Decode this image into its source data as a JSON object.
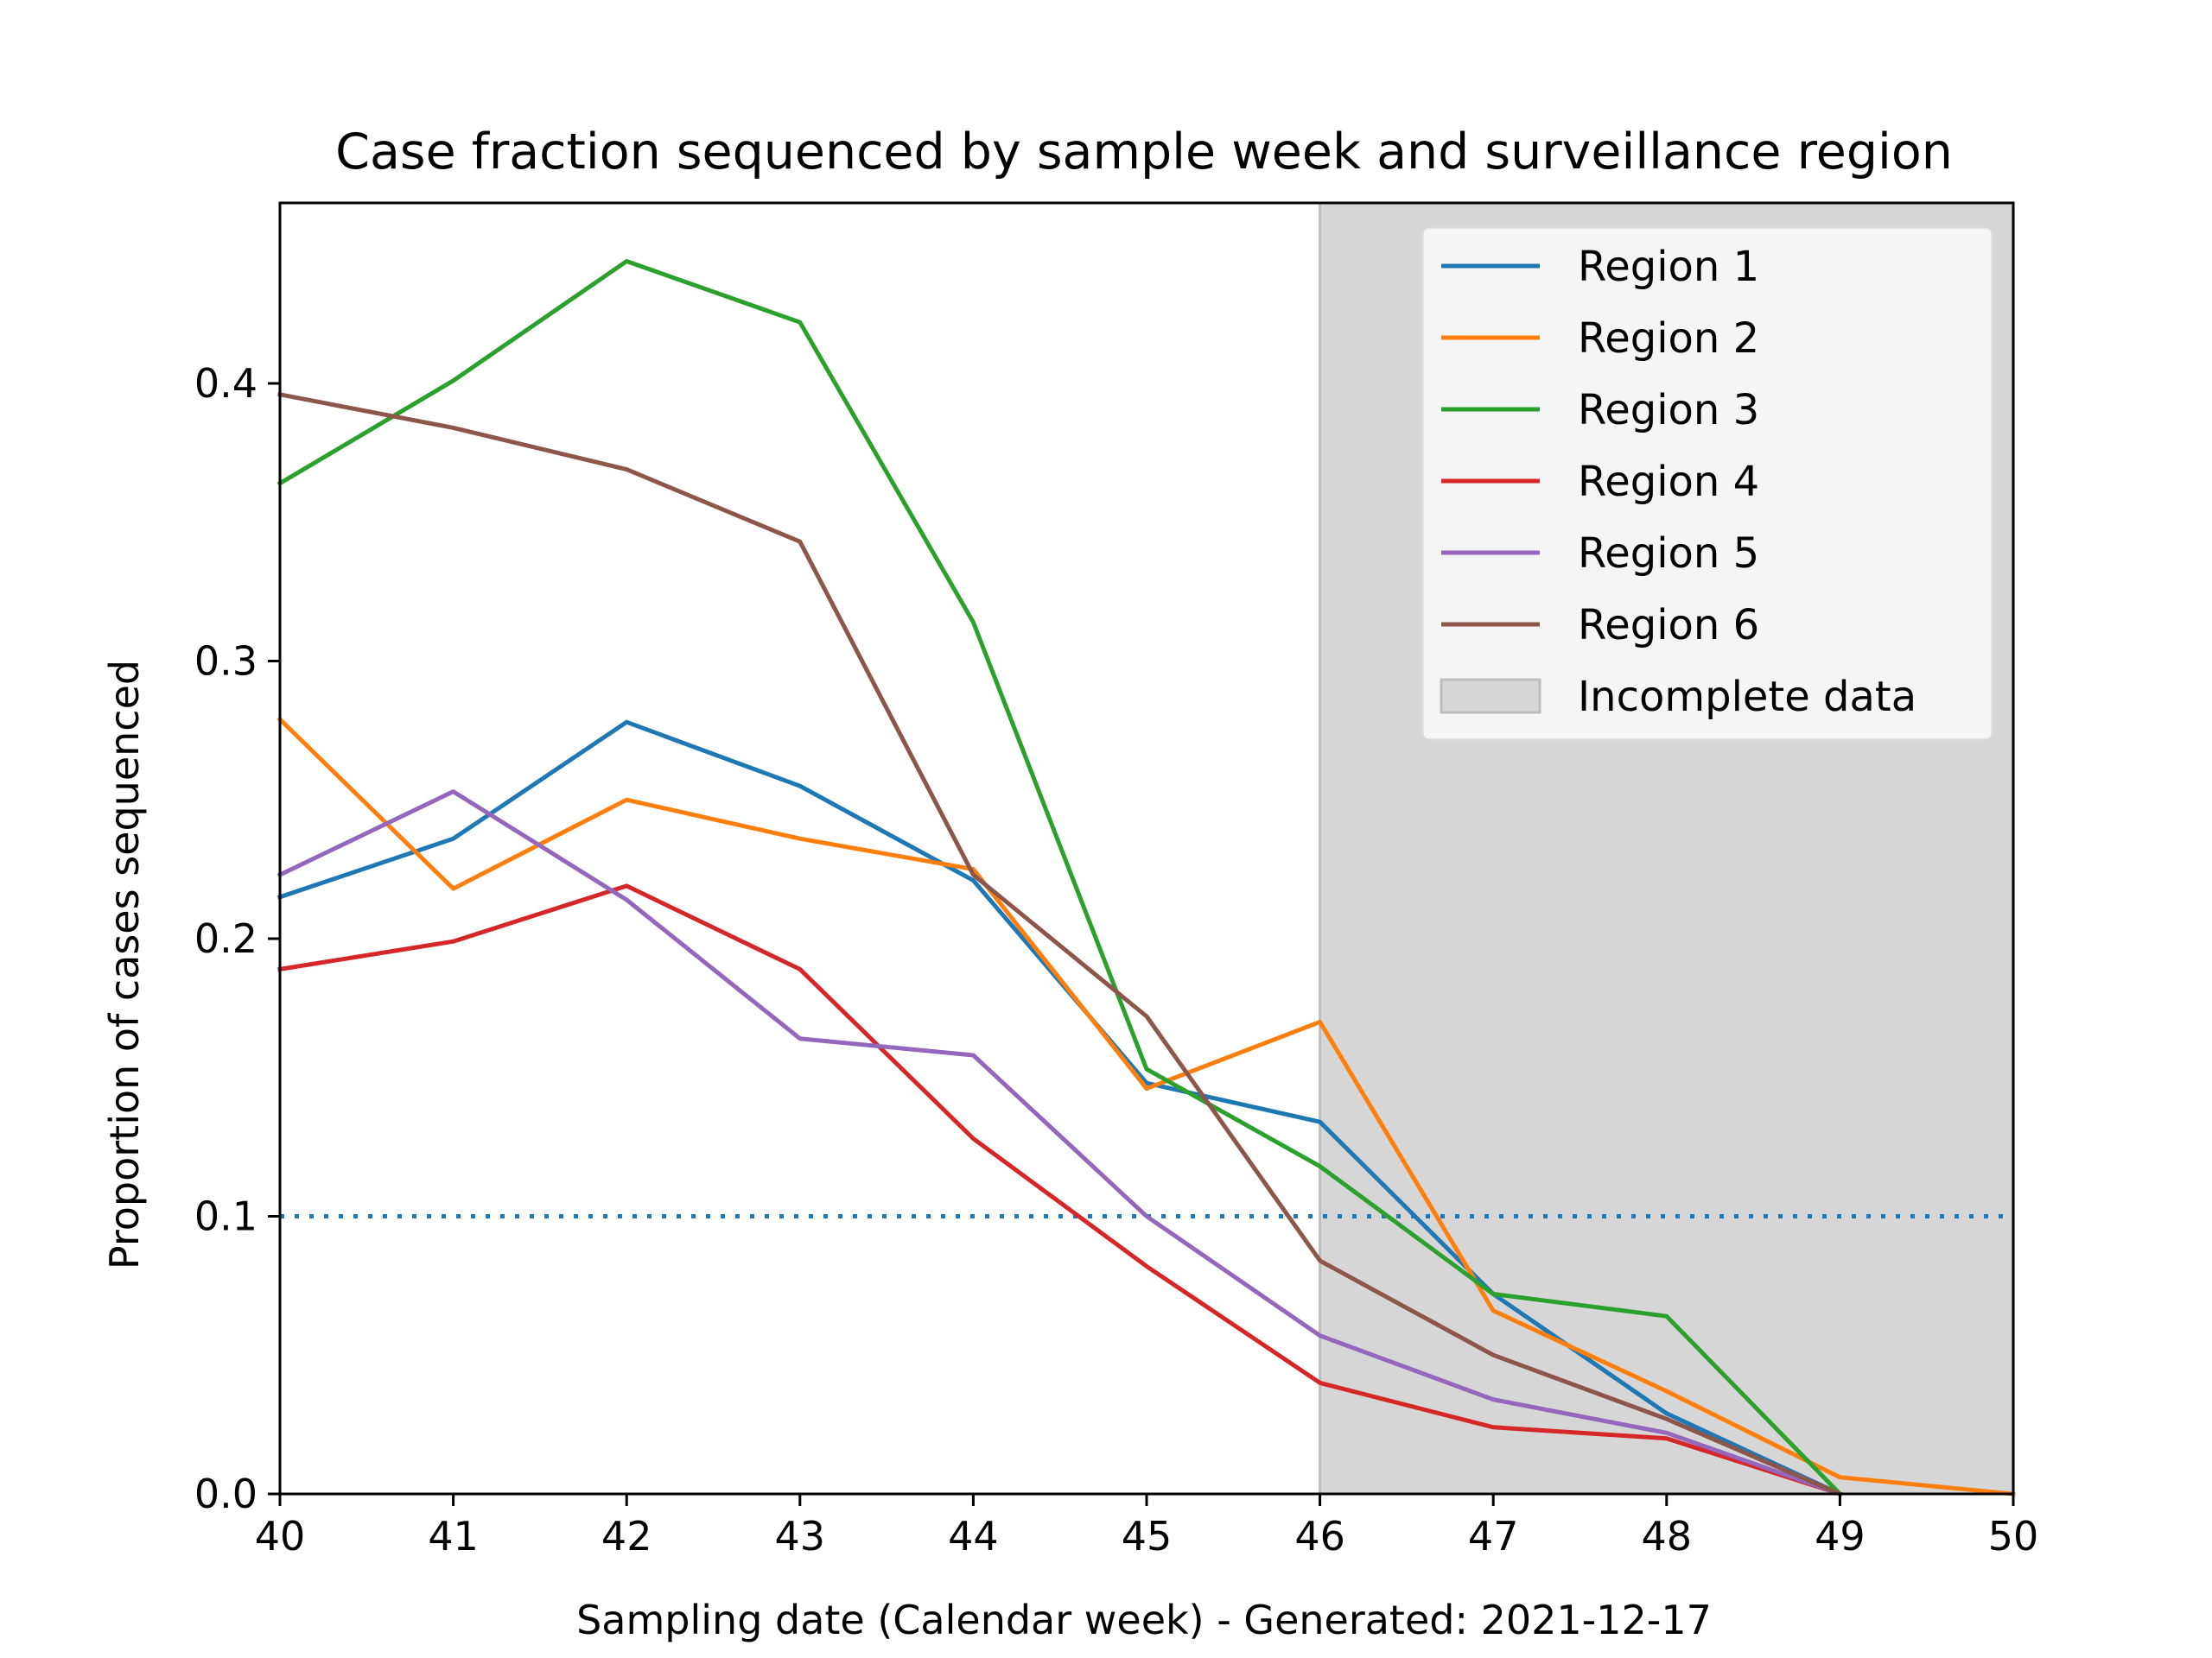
{
  "chart_data": {
    "type": "line",
    "title": "Case fraction sequenced by sample week and surveillance region",
    "xlabel": "Sampling date (Calendar week) - Generated: 2021-12-17",
    "ylabel": "Proportion of cases sequenced",
    "xlim": [
      40,
      50
    ],
    "ylim": [
      0,
      0.465
    ],
    "x_ticks": [
      40,
      41,
      42,
      43,
      44,
      45,
      46,
      47,
      48,
      49,
      50
    ],
    "y_ticks": [
      0.0,
      0.1,
      0.2,
      0.3,
      0.4
    ],
    "y_tick_labels": [
      "0.0",
      "0.1",
      "0.2",
      "0.3",
      "0.4"
    ],
    "grid": false,
    "legend_position": "top-right",
    "threshold": {
      "y": 0.1,
      "color": "#1f77b4",
      "style": "dotted"
    },
    "incomplete_region": {
      "x_start": 46,
      "x_end": 50,
      "label": "Incomplete data",
      "color": "#d6d6d6"
    },
    "series": [
      {
        "name": "Region 1",
        "color": "#1f77b4",
        "x": [
          40,
          41,
          42,
          43,
          44,
          45,
          46,
          47,
          48,
          49
        ],
        "y": [
          0.215,
          0.236,
          0.278,
          0.255,
          0.221,
          0.148,
          0.134,
          0.072,
          0.029,
          0.0
        ]
      },
      {
        "name": "Region 2",
        "color": "#ff7f0e",
        "x": [
          40,
          41,
          42,
          43,
          44,
          45,
          46,
          47,
          48,
          49,
          50
        ],
        "y": [
          0.279,
          0.218,
          0.25,
          0.236,
          0.225,
          0.146,
          0.17,
          0.066,
          0.037,
          0.006,
          0.0
        ]
      },
      {
        "name": "Region 3",
        "color": "#2ca02c",
        "x": [
          40,
          41,
          42,
          43,
          44,
          45,
          46,
          47,
          48,
          49
        ],
        "y": [
          0.364,
          0.401,
          0.444,
          0.422,
          0.314,
          0.153,
          0.118,
          0.072,
          0.064,
          0.0
        ]
      },
      {
        "name": "Region 4",
        "color": "#d62728",
        "x": [
          40,
          41,
          42,
          43,
          44,
          45,
          46,
          47,
          48,
          49
        ],
        "y": [
          0.189,
          0.199,
          0.219,
          0.189,
          0.128,
          0.082,
          0.04,
          0.024,
          0.02,
          0.0
        ]
      },
      {
        "name": "Region 5",
        "color": "#9467bd",
        "x": [
          40,
          41,
          42,
          43,
          44,
          45,
          46,
          47,
          48,
          49
        ],
        "y": [
          0.223,
          0.253,
          0.214,
          0.164,
          0.158,
          0.1,
          0.057,
          0.034,
          0.022,
          0.0
        ]
      },
      {
        "name": "Region 6",
        "color": "#8c564b",
        "x": [
          40,
          41,
          42,
          43,
          44,
          45,
          46,
          47,
          48,
          49
        ],
        "y": [
          0.396,
          0.384,
          0.369,
          0.343,
          0.223,
          0.172,
          0.084,
          0.05,
          0.027,
          0.0
        ]
      }
    ]
  }
}
